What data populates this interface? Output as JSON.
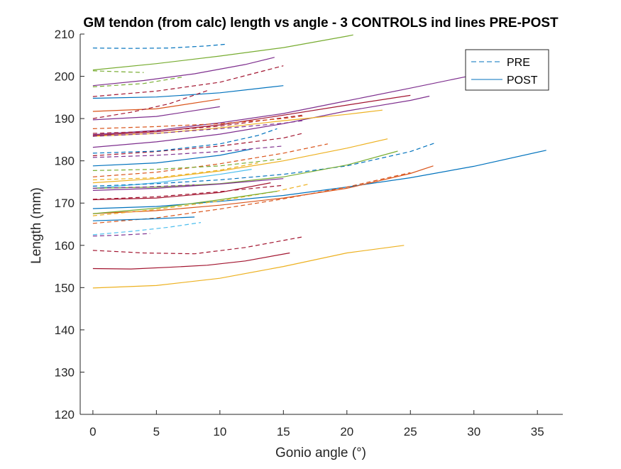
{
  "chart_data": {
    "type": "line",
    "title": "GM tendon (from calc) length vs angle - 3 CONTROLS ind lines PRE-POST",
    "xlabel": "Gonio angle (°)",
    "ylabel": "Length (mm)",
    "xlim": [
      -1,
      37
    ],
    "ylim": [
      120,
      210
    ],
    "xticks": [
      0,
      5,
      10,
      15,
      20,
      25,
      30,
      35
    ],
    "yticks": [
      120,
      130,
      140,
      150,
      160,
      170,
      180,
      190,
      200,
      210
    ],
    "grid": false,
    "legend": {
      "placement": "top-right",
      "entries": [
        {
          "label": "PRE",
          "style": "dashed"
        },
        {
          "label": "POST",
          "style": "solid"
        }
      ]
    },
    "series": [
      {
        "style": "dashed",
        "color": "#0072BD",
        "x": [
          0,
          3,
          6,
          9,
          10.5
        ],
        "y": [
          206.7,
          206.6,
          206.7,
          207.2,
          207.6
        ]
      },
      {
        "style": "solid",
        "color": "#77AC30",
        "x": [
          0,
          5,
          10,
          15,
          20,
          20.5
        ],
        "y": [
          201.5,
          203,
          204.8,
          206.8,
          209.5,
          209.8
        ]
      },
      {
        "style": "dashed",
        "color": "#77AC30",
        "x": [
          0,
          2,
          4
        ],
        "y": [
          201.3,
          201.1,
          200.9
        ]
      },
      {
        "style": "dashed",
        "color": "#77AC30",
        "x": [
          0,
          4,
          7
        ],
        "y": [
          197.5,
          198.3,
          199.8
        ]
      },
      {
        "style": "solid",
        "color": "#7E2F8E",
        "x": [
          0,
          4,
          8,
          12,
          14.3
        ],
        "y": [
          197.8,
          199,
          200.6,
          202.8,
          204.5
        ]
      },
      {
        "style": "dashed",
        "color": "#A2142F",
        "x": [
          0,
          5,
          10,
          15
        ],
        "y": [
          195.2,
          196.5,
          198.6,
          202.5
        ]
      },
      {
        "style": "solid",
        "color": "#0072BD",
        "x": [
          0,
          5,
          10,
          15
        ],
        "y": [
          194.8,
          195.1,
          196.1,
          197.8
        ]
      },
      {
        "style": "solid",
        "color": "#D95319",
        "x": [
          0,
          5,
          10
        ],
        "y": [
          191.7,
          192.3,
          194.6
        ]
      },
      {
        "style": "dashed",
        "color": "#A2142F",
        "x": [
          0,
          3,
          6,
          9
        ],
        "y": [
          190,
          191.5,
          193.5,
          196.6
        ]
      },
      {
        "style": "solid",
        "color": "#7E2F8E",
        "x": [
          0,
          5,
          10,
          15,
          20,
          25,
          30,
          31
        ],
        "y": [
          186.2,
          187.2,
          189,
          191.2,
          194.2,
          197.2,
          200.3,
          201
        ]
      },
      {
        "style": "solid",
        "color": "#7E2F8E",
        "x": [
          0,
          5,
          10,
          15,
          20,
          25,
          26.5
        ],
        "y": [
          183.2,
          184.5,
          186.3,
          188.8,
          191.8,
          194.3,
          195.3
        ]
      },
      {
        "style": "solid",
        "color": "#A2142F",
        "x": [
          0,
          5,
          10,
          15,
          20,
          25
        ],
        "y": [
          186,
          186.9,
          188.5,
          190.8,
          193.2,
          195.5
        ]
      },
      {
        "style": "solid",
        "color": "#EDB120",
        "x": [
          0,
          5,
          10,
          15,
          20,
          22.8
        ],
        "y": [
          185.8,
          186.5,
          187.8,
          189.5,
          191,
          192
        ]
      },
      {
        "style": "solid",
        "color": "#7E2F8E",
        "x": [
          0,
          5,
          10
        ],
        "y": [
          189.7,
          190.5,
          192.8
        ]
      },
      {
        "style": "dashed",
        "color": "#A2142F",
        "x": [
          0,
          5,
          10,
          16.5
        ],
        "y": [
          186.5,
          187,
          188.2,
          190.8
        ]
      },
      {
        "style": "dashed",
        "color": "#D95319",
        "x": [
          0,
          5,
          10,
          15,
          16.5
        ],
        "y": [
          187.6,
          188.1,
          188.8,
          190,
          190.6
        ]
      },
      {
        "style": "dashed",
        "color": "#7E2F8E",
        "x": [
          0,
          5,
          10,
          15,
          16.5
        ],
        "y": [
          185.8,
          186.5,
          187.6,
          188.9,
          189.5
        ]
      },
      {
        "style": "dashed",
        "color": "#A2142F",
        "x": [
          0,
          5,
          10,
          15,
          16.5
        ],
        "y": [
          181.2,
          182.2,
          183.5,
          185.4,
          186.5
        ]
      },
      {
        "style": "dashed",
        "color": "#0072BD",
        "x": [
          0,
          5,
          10,
          13,
          14.5
        ],
        "y": [
          181.8,
          182.3,
          184,
          186,
          187.6
        ]
      },
      {
        "style": "solid",
        "color": "#0072BD",
        "x": [
          0,
          5,
          10,
          12.5
        ],
        "y": [
          178.8,
          179.5,
          181.3,
          182.8
        ]
      },
      {
        "style": "dashed",
        "color": "#7E2F8E",
        "x": [
          0,
          5,
          10,
          15
        ],
        "y": [
          180.8,
          181.3,
          182.2,
          183.5
        ]
      },
      {
        "style": "dashed",
        "color": "#D95319",
        "x": [
          0,
          5,
          10,
          15,
          18.5
        ],
        "y": [
          176.2,
          177.3,
          179.3,
          181.8,
          184
        ]
      },
      {
        "style": "solid",
        "color": "#EDB120",
        "x": [
          0,
          5,
          10,
          15,
          20,
          23.2
        ],
        "y": [
          174.8,
          175.8,
          177.6,
          180,
          183,
          185.2
        ]
      },
      {
        "style": "dashed",
        "color": "#EDB120",
        "x": [
          0,
          5,
          10,
          13
        ],
        "y": [
          175.5,
          176,
          177.8,
          179.5
        ]
      },
      {
        "style": "solid",
        "color": "#4DBEEE",
        "x": [
          0,
          5,
          10,
          12.5
        ],
        "y": [
          173.5,
          174.8,
          176.8,
          178
        ]
      },
      {
        "style": "dashed",
        "color": "#0072BD",
        "x": [
          0,
          5,
          10,
          15,
          20,
          25,
          27
        ],
        "y": [
          174,
          174.6,
          175.5,
          176.8,
          178.8,
          182.2,
          184.3
        ]
      },
      {
        "style": "solid",
        "color": "#77AC30",
        "x": [
          0,
          5,
          10,
          15,
          20,
          24
        ],
        "y": [
          173.5,
          173.8,
          174.6,
          176.2,
          179,
          182.3
        ]
      },
      {
        "style": "dashed",
        "color": "#77AC30",
        "x": [
          0,
          5,
          10,
          15
        ],
        "y": [
          177.7,
          178,
          178.8,
          180.5
        ]
      },
      {
        "style": "solid",
        "color": "#7E2F8E",
        "x": [
          0,
          5,
          10,
          15
        ],
        "y": [
          173,
          173.5,
          174.5,
          175.8
        ]
      },
      {
        "style": "dashed",
        "color": "#7E2F8E",
        "x": [
          0,
          4,
          8
        ],
        "y": [
          173.5,
          173.8,
          174.3
        ]
      },
      {
        "style": "solid",
        "color": "#A2142F",
        "x": [
          0,
          5,
          10,
          14
        ],
        "y": [
          170.8,
          171.2,
          172.5,
          174.8
        ]
      },
      {
        "style": "dashed",
        "color": "#A2142F",
        "x": [
          0,
          5,
          10,
          15
        ],
        "y": [
          170.9,
          171.5,
          172.7,
          174.2
        ]
      },
      {
        "style": "solid",
        "color": "#0072BD",
        "x": [
          0,
          5,
          10,
          15,
          20,
          25,
          30,
          35.7
        ],
        "y": [
          168.7,
          169.2,
          170.4,
          171.8,
          173.8,
          176,
          178.7,
          182.5
        ]
      },
      {
        "style": "solid",
        "color": "#D95319",
        "x": [
          0,
          5,
          10,
          15,
          20,
          25,
          26.8
        ],
        "y": [
          167.5,
          168.2,
          169.5,
          171.2,
          173.5,
          177,
          178.8
        ]
      },
      {
        "style": "dashed",
        "color": "#D95319",
        "x": [
          0,
          5,
          10,
          15,
          20,
          25
        ],
        "y": [
          165.2,
          166.5,
          168.6,
          171,
          173.8,
          177.2
        ]
      },
      {
        "style": "dashed",
        "color": "#EDB120",
        "x": [
          0,
          5,
          10,
          14.5,
          17
        ],
        "y": [
          167,
          168.5,
          170.5,
          172.8,
          174.5
        ]
      },
      {
        "style": "solid",
        "color": "#77AC30",
        "x": [
          0,
          5,
          10,
          14.5
        ],
        "y": [
          167.5,
          168.8,
          170.8,
          172.8
        ]
      },
      {
        "style": "solid",
        "color": "#0072BD",
        "x": [
          0,
          4,
          8
        ],
        "y": [
          165.8,
          166.2,
          166.7
        ]
      },
      {
        "style": "dashed",
        "color": "#4DBEEE",
        "x": [
          0,
          3,
          6,
          8.5
        ],
        "y": [
          162.5,
          163.3,
          164.3,
          165.4
        ]
      },
      {
        "style": "dashed",
        "color": "#7E2F8E",
        "x": [
          0,
          2,
          4.5
        ],
        "y": [
          162.2,
          162.4,
          162.8
        ]
      },
      {
        "style": "dashed",
        "color": "#A2142F",
        "x": [
          0,
          4,
          8,
          12,
          16.5
        ],
        "y": [
          158.8,
          158.2,
          158,
          159.5,
          162
        ]
      },
      {
        "style": "solid",
        "color": "#A2142F",
        "x": [
          0,
          3,
          6,
          9,
          12,
          15.5
        ],
        "y": [
          154.5,
          154.4,
          154.8,
          155.3,
          156.3,
          158.2
        ]
      },
      {
        "style": "solid",
        "color": "#EDB120",
        "x": [
          0,
          5,
          10,
          15,
          20,
          24.5
        ],
        "y": [
          149.9,
          150.5,
          152.2,
          155,
          158.2,
          160
        ]
      }
    ]
  }
}
